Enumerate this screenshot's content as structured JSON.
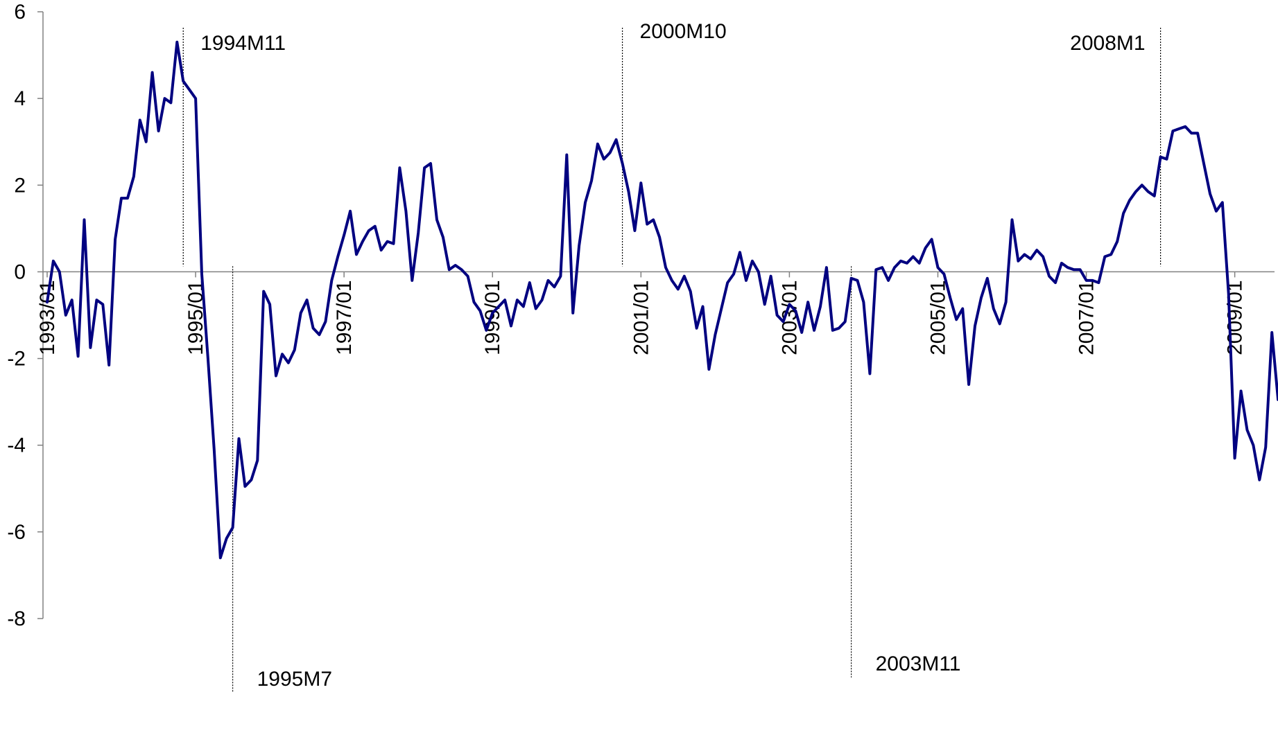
{
  "chart_data": {
    "type": "line",
    "title": "",
    "xlabel": "",
    "ylabel": "",
    "ylim": [
      -8,
      6
    ],
    "yticks": [
      6,
      4,
      2,
      0,
      -2,
      -4,
      -6,
      -8
    ],
    "xticks": [
      "1993/01",
      "1995/01",
      "1997/01",
      "1999/01",
      "2001/01",
      "2003/01",
      "2005/01",
      "2007/01",
      "2009/01"
    ],
    "x_start": "1993/01",
    "frequency": "monthly",
    "grid": false,
    "legend": "none",
    "series": [
      {
        "color": "#000080",
        "values": [
          -0.7,
          0.25,
          0.0,
          -1.0,
          -0.65,
          -1.95,
          1.2,
          -1.75,
          -0.65,
          -0.75,
          -2.15,
          0.75,
          1.7,
          1.7,
          2.2,
          3.5,
          3.0,
          4.6,
          3.25,
          4.0,
          3.9,
          5.3,
          4.4,
          4.2,
          4.0,
          -0.05,
          -2.0,
          -4.1,
          -6.6,
          -6.15,
          -5.9,
          -3.85,
          -4.95,
          -4.8,
          -4.35,
          -0.45,
          -0.75,
          -2.4,
          -1.9,
          -2.1,
          -1.8,
          -0.95,
          -0.65,
          -1.3,
          -1.45,
          -1.15,
          -0.2,
          0.35,
          0.85,
          1.4,
          0.4,
          0.7,
          0.95,
          1.05,
          0.5,
          0.7,
          0.65,
          2.4,
          1.4,
          -0.2,
          0.9,
          2.4,
          2.5,
          1.2,
          0.8,
          0.05,
          0.15,
          0.05,
          -0.1,
          -0.7,
          -0.9,
          -1.35,
          -0.95,
          -0.8,
          -0.65,
          -1.25,
          -0.65,
          -0.8,
          -0.25,
          -0.85,
          -0.65,
          -0.2,
          -0.35,
          -0.1,
          2.7,
          -0.95,
          0.6,
          1.6,
          2.1,
          2.95,
          2.6,
          2.75,
          3.05,
          2.5,
          1.85,
          0.95,
          2.05,
          1.1,
          1.2,
          0.8,
          0.1,
          -0.2,
          -0.4,
          -0.1,
          -0.45,
          -1.3,
          -0.8,
          -2.25,
          -1.45,
          -0.85,
          -0.25,
          -0.05,
          0.45,
          -0.2,
          0.25,
          0.0,
          -0.75,
          -0.1,
          -1.0,
          -1.15,
          -0.75,
          -0.9,
          -1.4,
          -0.7,
          -1.35,
          -0.8,
          0.1,
          -1.35,
          -1.3,
          -1.15,
          -0.15,
          -0.2,
          -0.7,
          -2.35,
          0.05,
          0.1,
          -0.2,
          0.1,
          0.25,
          0.2,
          0.35,
          0.2,
          0.55,
          0.75,
          0.1,
          -0.05,
          -0.6,
          -1.1,
          -0.85,
          -2.6,
          -1.25,
          -0.6,
          -0.15,
          -0.85,
          -1.2,
          -0.7,
          1.2,
          0.25,
          0.4,
          0.3,
          0.5,
          0.35,
          -0.1,
          -0.25,
          0.2,
          0.1,
          0.05,
          0.05,
          -0.2,
          -0.2,
          -0.25,
          0.35,
          0.4,
          0.7,
          1.35,
          1.65,
          1.85,
          2.0,
          1.85,
          1.75,
          2.65,
          2.6,
          3.25,
          3.3,
          3.35,
          3.2,
          3.2,
          2.5,
          1.8,
          1.4,
          1.6,
          -0.5,
          -4.3,
          -2.75,
          -3.65,
          -4.0,
          -4.8,
          -4.05,
          -1.4,
          -2.95
        ]
      }
    ],
    "annotations": [
      {
        "label": "1994M11",
        "date": "1994/11",
        "text_pos": "above-right"
      },
      {
        "label": "1995M7",
        "date": "1995/07",
        "text_pos": "below-right"
      },
      {
        "label": "2000M10",
        "date": "2000/10",
        "text_pos": "above-right"
      },
      {
        "label": "2003M11",
        "date": "2003/11",
        "text_pos": "below-right"
      },
      {
        "label": "2008M1",
        "date": "2008/01",
        "text_pos": "above-left"
      }
    ]
  }
}
